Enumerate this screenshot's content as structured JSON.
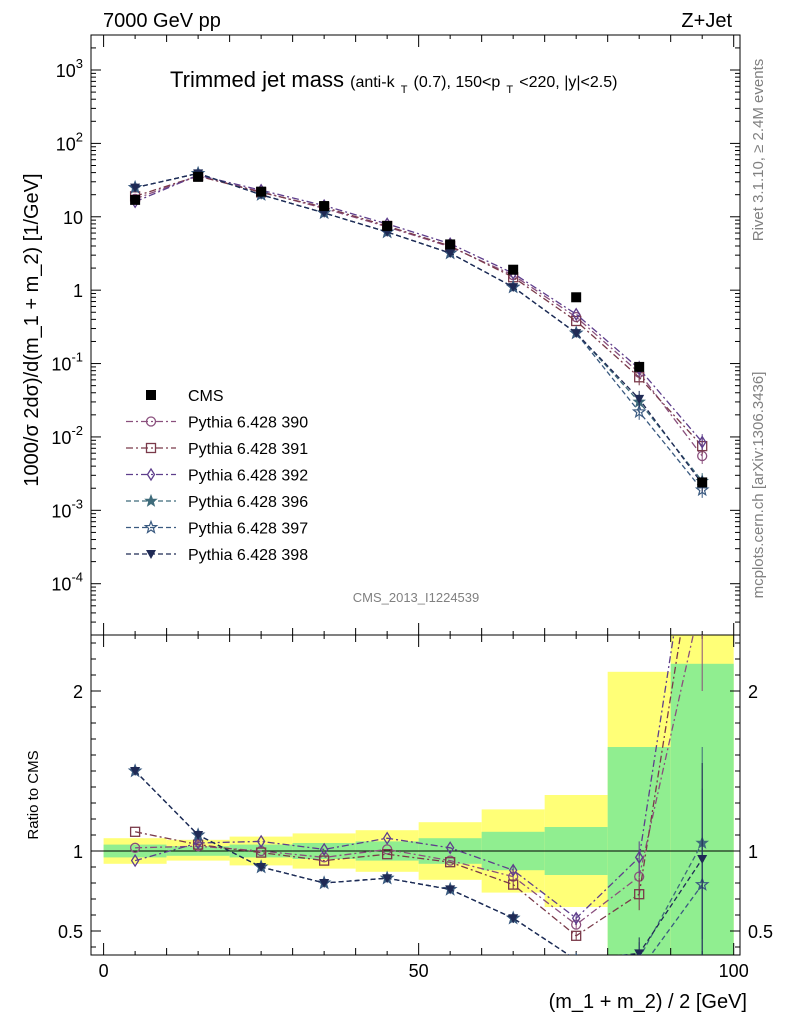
{
  "header": {
    "left": "7000 GeV pp",
    "right": "Z+Jet"
  },
  "side_labels": {
    "rivet": "Rivet 3.1.10, ≥ 2.4M events",
    "mcplots": "mcplots.cern.ch [arXiv:1306.3436]"
  },
  "watermark": "CMS_2013_I1224539",
  "chart_data": [
    {
      "type": "line",
      "panel": "main",
      "title_main": "Trimmed jet mass",
      "title_sub_parts": [
        "(anti-k",
        "T",
        "(0.7), 150<p",
        "T",
        "<220, |y|<2.5)"
      ],
      "ylabel": "1000/σ 2dσ)/d(m_1 + m_2) [1/GeV]",
      "yscale": "log",
      "ylim": [
        2e-05,
        3000
      ],
      "xlim": [
        -2,
        101
      ],
      "ytick_labels": [
        {
          "base": "10",
          "exp": "-4",
          "value": 0.0001
        },
        {
          "base": "10",
          "exp": "-3",
          "value": 0.001
        },
        {
          "base": "10",
          "exp": "-2",
          "value": 0.01
        },
        {
          "base": "10",
          "exp": "-1",
          "value": 0.1
        },
        {
          "base": "1",
          "exp": "",
          "value": 1
        },
        {
          "base": "10",
          "exp": "",
          "value": 10
        },
        {
          "base": "10",
          "exp": "2",
          "value": 100
        },
        {
          "base": "10",
          "exp": "3",
          "value": 1000
        }
      ],
      "x": [
        5,
        15,
        25,
        35,
        45,
        55,
        65,
        75,
        85,
        95
      ],
      "cms": {
        "name": "CMS",
        "values": [
          17,
          35,
          22,
          14,
          7.5,
          4.2,
          1.9,
          0.8,
          0.09,
          0.0024
        ]
      },
      "series": [
        {
          "name": "Pythia 6.428 390",
          "color": "#8a4f7d",
          "marker": "circle-open",
          "dash": "7,3,2,3",
          "values": [
            17.5,
            36,
            22,
            13,
            7.3,
            3.9,
            1.6,
            0.43,
            0.075,
            0.0055
          ]
        },
        {
          "name": "Pythia 6.428 391",
          "color": "#7a3a4a",
          "marker": "square-open",
          "dash": "7,3,2,3",
          "values": [
            19,
            36,
            21.5,
            13.5,
            7.5,
            4.0,
            1.5,
            0.38,
            0.065,
            0.0075
          ]
        },
        {
          "name": "Pythia 6.428 392",
          "color": "#5e3e8c",
          "marker": "diamond-open",
          "dash": "7,3,2,3",
          "values": [
            16,
            37,
            23,
            14.2,
            8.0,
            4.3,
            1.7,
            0.47,
            0.085,
            0.0085
          ]
        },
        {
          "name": "Pythia 6.428 396",
          "color": "#3e6b7a",
          "marker": "star-filled",
          "dash": "5,3",
          "values": [
            25,
            39,
            20,
            11.3,
            6.2,
            3.2,
            1.1,
            0.26,
            0.03,
            0.0025
          ]
        },
        {
          "name": "Pythia 6.428 397",
          "color": "#3a5a80",
          "marker": "star-open",
          "dash": "5,3",
          "values": [
            25,
            39,
            20,
            11.3,
            6.2,
            3.2,
            1.1,
            0.26,
            0.022,
            0.0019
          ]
        },
        {
          "name": "Pythia 6.428 398",
          "color": "#1f2a55",
          "marker": "triangle-down-filled",
          "dash": "5,3",
          "values": [
            25,
            39,
            20,
            11.3,
            6.2,
            3.2,
            1.1,
            0.26,
            0.033,
            0.0023
          ]
        }
      ]
    },
    {
      "type": "line",
      "panel": "ratio",
      "ylabel": "Ratio to CMS",
      "xlabel": "(m_1 + m_2) / 2 [GeV]",
      "ylim": [
        0.35,
        2.35
      ],
      "xlim": [
        -2,
        101
      ],
      "xtick_labels": [
        {
          "label": "0",
          "value": 0
        },
        {
          "label": "50",
          "value": 50
        },
        {
          "label": "100",
          "value": 100
        }
      ],
      "ytick_labels": [
        {
          "label": "0.5",
          "value": 0.5
        },
        {
          "label": "1",
          "value": 1
        },
        {
          "label": "2",
          "value": 2
        }
      ],
      "bin_edges": [
        0,
        10,
        20,
        30,
        40,
        50,
        60,
        70,
        80,
        90,
        100
      ],
      "band_inner": [
        [
          0.96,
          1.04
        ],
        [
          0.97,
          1.03
        ],
        [
          0.96,
          1.04
        ],
        [
          0.95,
          1.05
        ],
        [
          0.94,
          1.06
        ],
        [
          0.92,
          1.08
        ],
        [
          0.88,
          1.12
        ],
        [
          0.85,
          1.15
        ],
        [
          0.35,
          1.65
        ],
        [
          0.35,
          2.17
        ]
      ],
      "band_outer": [
        [
          0.92,
          1.08
        ],
        [
          0.94,
          1.07
        ],
        [
          0.91,
          1.09
        ],
        [
          0.89,
          1.11
        ],
        [
          0.87,
          1.13
        ],
        [
          0.82,
          1.18
        ],
        [
          0.74,
          1.26
        ],
        [
          0.65,
          1.35
        ],
        [
          0.37,
          2.12
        ],
        [
          0.35,
          2.35
        ]
      ],
      "x": [
        5,
        15,
        25,
        35,
        45,
        55,
        65,
        75,
        85,
        95
      ],
      "series": [
        {
          "name": "Pythia 6.428 390",
          "values": [
            1.02,
            1.03,
            1.0,
            0.96,
            1.01,
            0.94,
            0.84,
            0.54,
            0.84,
            2.6
          ]
        },
        {
          "name": "Pythia 6.428 391",
          "values": [
            1.12,
            1.04,
            0.99,
            0.94,
            0.98,
            0.93,
            0.79,
            0.47,
            0.73,
            3.2
          ]
        },
        {
          "name": "Pythia 6.428 392",
          "values": [
            0.94,
            1.05,
            1.06,
            1.01,
            1.08,
            1.02,
            0.88,
            0.58,
            0.96,
            3.5
          ]
        },
        {
          "name": "Pythia 6.428 396",
          "values": [
            1.5,
            1.1,
            0.9,
            0.8,
            0.83,
            0.76,
            0.58,
            0.32,
            0.33,
            1.05
          ]
        },
        {
          "name": "Pythia 6.428 397",
          "values": [
            1.5,
            1.1,
            0.9,
            0.8,
            0.83,
            0.76,
            0.58,
            0.32,
            0.25,
            0.79
          ]
        },
        {
          "name": "Pythia 6.428 398",
          "values": [
            1.5,
            1.1,
            0.9,
            0.8,
            0.83,
            0.76,
            0.58,
            0.32,
            0.36,
            0.95
          ]
        }
      ]
    }
  ]
}
